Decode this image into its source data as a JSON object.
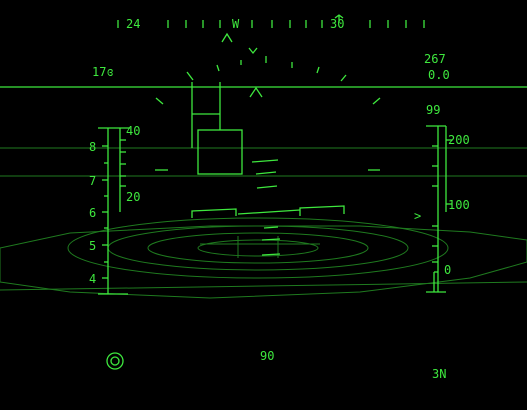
{
  "colors": {
    "hud_green": "#3ee83e",
    "dim_green": "#1f7a1f",
    "background": "#000000"
  },
  "heading_tape": {
    "labels": [
      "24",
      "W",
      "30"
    ],
    "marker_icon": "aircraft-symbol-icon"
  },
  "readouts": {
    "left_value": "17ɞ",
    "right_top_value": "267",
    "right_sub_value": "0.0",
    "altitude_box_value": "99",
    "bottom_center_value": "90",
    "bottom_right_value": "3N"
  },
  "left_scale": {
    "inner_labels": [
      "40",
      "20"
    ],
    "outer_labels": [
      "8",
      "7",
      "6",
      "5",
      "4"
    ]
  },
  "right_scale": {
    "labels": [
      "200",
      "100",
      "0"
    ],
    "pointer": ">"
  },
  "icons": {
    "target_icon": "concentric-circle-icon"
  }
}
